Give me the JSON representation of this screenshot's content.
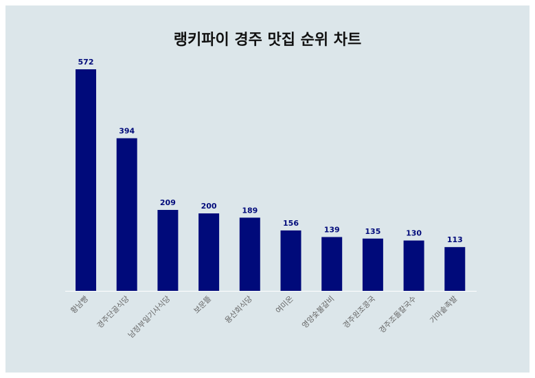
{
  "title": "랭키파이 경주 맛집 순위 차트",
  "colors": {
    "bar": "#000a7a",
    "label": "#000a7a",
    "tick": "#666666",
    "background": "#dce6ea",
    "axis": "#ffffff"
  },
  "chart_data": {
    "type": "bar",
    "title": "랭키파이 경주 맛집 순위 차트",
    "xlabel": "",
    "ylabel": "",
    "categories": [
      "황남빵",
      "경주단골식당",
      "남정부일기사식당",
      "보문뜰",
      "용산회식당",
      "여미온",
      "영양숯불갈비",
      "경주원조콩국",
      "경주조돌칼국수",
      "가마솥족발"
    ],
    "values": [
      572,
      394,
      209,
      200,
      189,
      156,
      139,
      135,
      130,
      113
    ],
    "ylim": [
      0,
      572
    ],
    "grid": false,
    "legend": "none"
  }
}
